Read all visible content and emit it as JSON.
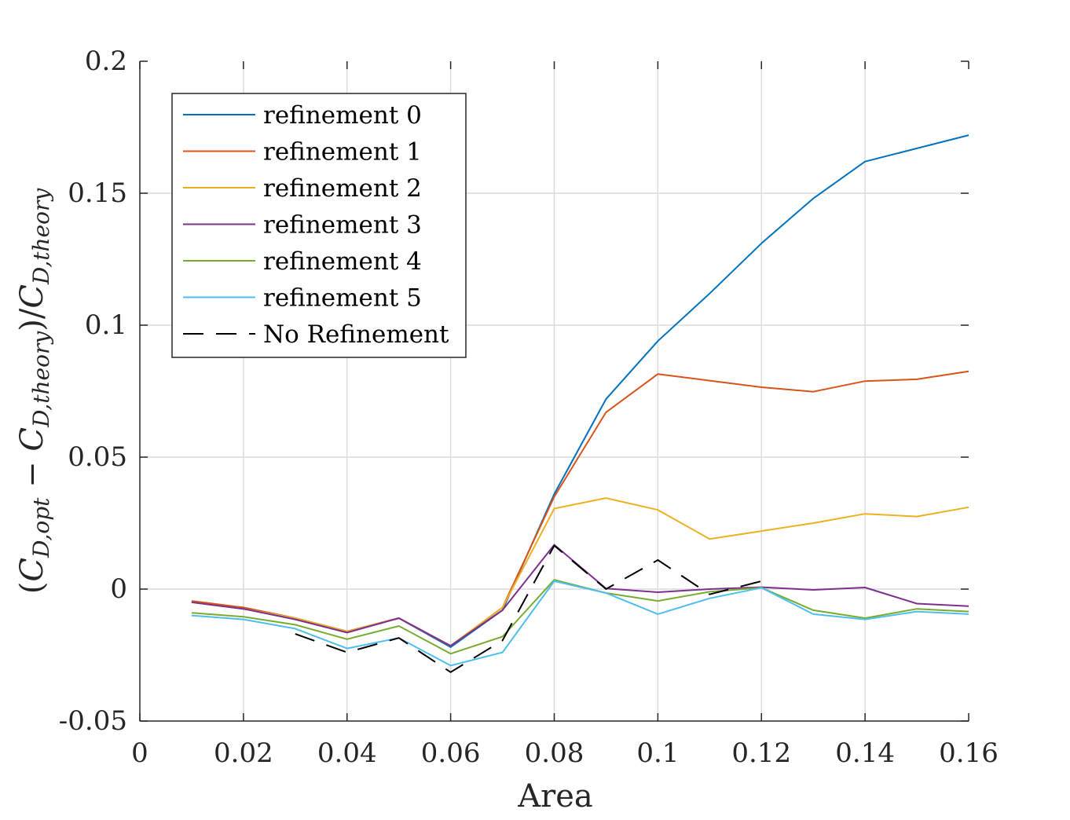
{
  "chart_data": {
    "type": "line",
    "title": "",
    "xlabel": "Area",
    "ylabel": {
      "open": "(",
      "c1": "C",
      "c1_sub": "D,opt",
      "minus": " − ",
      "c2": "C",
      "c2_sub": "D,theory",
      "close_div": ")/",
      "c3": "C",
      "c3_sub": "D,theory"
    },
    "xlim": [
      0,
      0.16
    ],
    "ylim": [
      -0.05,
      0.2
    ],
    "xticks": [
      0,
      0.02,
      0.04,
      0.06,
      0.08,
      0.1,
      0.12,
      0.14,
      0.16
    ],
    "xtick_labels": [
      "0",
      "0.02",
      "0.04",
      "0.06",
      "0.08",
      "0.1",
      "0.12",
      "0.14",
      "0.16"
    ],
    "yticks": [
      -0.05,
      0,
      0.05,
      0.1,
      0.15,
      0.2
    ],
    "ytick_labels": [
      "-0.05",
      "0",
      "0.05",
      "0.1",
      "0.15",
      "0.2"
    ],
    "grid": true,
    "legend_position": "top-left",
    "x": [
      0.01,
      0.02,
      0.03,
      0.04,
      0.05,
      0.06,
      0.07,
      0.08,
      0.09,
      0.1,
      0.11,
      0.12,
      0.13,
      0.14,
      0.15,
      0.16
    ],
    "series": [
      {
        "name": "refinement 0",
        "color": "#0072BD",
        "dash": "solid",
        "values": [
          -0.005,
          -0.007,
          -0.011,
          -0.016,
          -0.011,
          -0.022,
          -0.008,
          0.036,
          0.072,
          0.094,
          0.112,
          0.131,
          0.148,
          0.162,
          0.167,
          0.172
        ]
      },
      {
        "name": "refinement 1",
        "color": "#D95319",
        "dash": "solid",
        "values": [
          -0.0045,
          -0.007,
          -0.011,
          -0.016,
          -0.011,
          -0.0215,
          -0.007,
          0.035,
          0.067,
          0.0815,
          0.079,
          0.0765,
          0.0748,
          0.0788,
          0.0795,
          0.0825
        ]
      },
      {
        "name": "refinement 2",
        "color": "#EDB120",
        "dash": "solid",
        "values": [
          -0.005,
          -0.0075,
          -0.011,
          -0.016,
          -0.011,
          -0.0215,
          -0.007,
          0.0305,
          0.0345,
          0.03,
          0.019,
          0.022,
          0.025,
          0.0285,
          0.0275,
          0.031
        ]
      },
      {
        "name": "refinement 3",
        "color": "#7E2F8E",
        "dash": "solid",
        "values": [
          -0.005,
          -0.0075,
          -0.0115,
          -0.0165,
          -0.011,
          -0.0215,
          -0.008,
          0.0168,
          0.0002,
          -0.0012,
          0.0,
          0.0007,
          -0.0003,
          0.0006,
          -0.0055,
          -0.0065
        ]
      },
      {
        "name": "refinement 4",
        "color": "#77AC30",
        "dash": "solid",
        "values": [
          -0.009,
          -0.0105,
          -0.0135,
          -0.019,
          -0.014,
          -0.0245,
          -0.018,
          0.0035,
          -0.0015,
          -0.0045,
          -0.001,
          0.0005,
          -0.008,
          -0.011,
          -0.0075,
          -0.0085
        ]
      },
      {
        "name": "refinement 5",
        "color": "#4DBEEE",
        "dash": "solid",
        "values": [
          -0.01,
          -0.0115,
          -0.015,
          -0.0225,
          -0.0185,
          -0.029,
          -0.024,
          0.003,
          -0.0015,
          -0.0095,
          -0.0035,
          0.0005,
          -0.0095,
          -0.0115,
          -0.0085,
          -0.0095
        ]
      },
      {
        "name": "No Refinement",
        "color": "#000000",
        "dash": "dashed",
        "values": [
          null,
          null,
          -0.017,
          -0.024,
          -0.0185,
          -0.0315,
          -0.0195,
          0.0165,
          0.0,
          0.011,
          -0.002,
          0.003,
          null,
          null,
          null,
          null
        ]
      }
    ]
  }
}
